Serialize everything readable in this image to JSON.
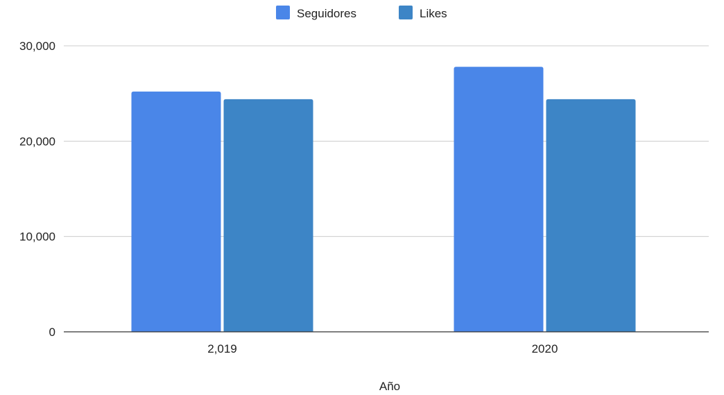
{
  "chart_data": {
    "type": "bar",
    "categories": [
      "2,019",
      "2020"
    ],
    "series": [
      {
        "name": "Seguidores",
        "values": [
          25200,
          27800
        ],
        "color": "#4a86e8"
      },
      {
        "name": "Likes",
        "values": [
          24400,
          24400
        ],
        "color": "#3d85c6"
      }
    ],
    "xlabel": "Año",
    "ylabel": "",
    "ylim": [
      0,
      30000
    ],
    "yticks": [
      0,
      10000,
      20000,
      30000
    ],
    "ytick_labels": [
      "0",
      "10,000",
      "20,000",
      "30,000"
    ],
    "grid": true,
    "legend_position": "top-center"
  }
}
